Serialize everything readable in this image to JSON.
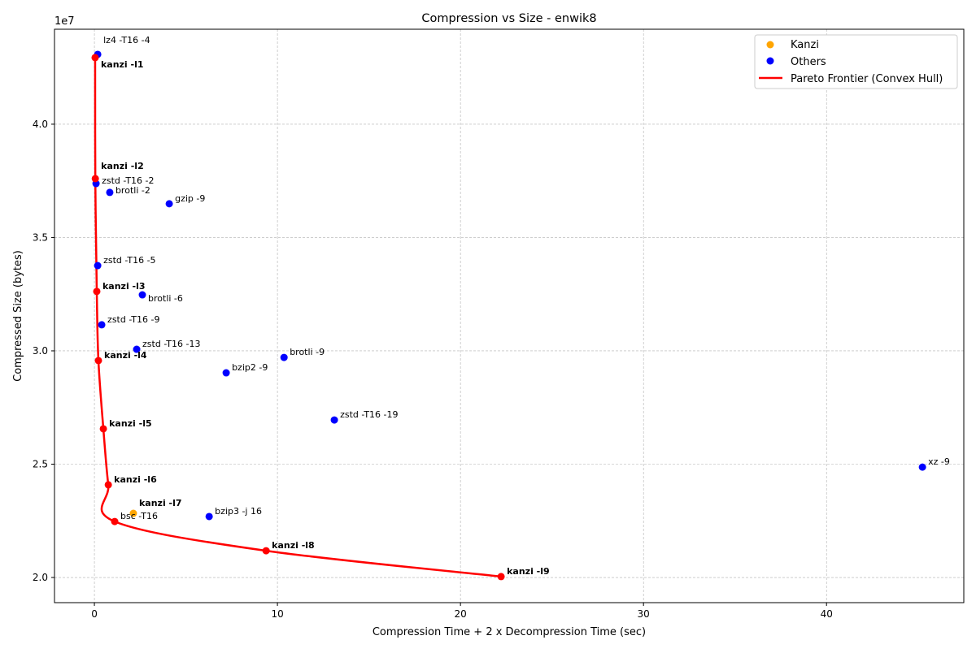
{
  "chart_data": {
    "type": "scatter",
    "title": "Compression vs Size - enwik8",
    "xlabel": "Compression Time + 2 x Decompression Time (sec)",
    "ylabel": "Compressed Size (bytes)",
    "y_scale_label": "1e7",
    "xlim": [
      -2.18,
      47.5
    ],
    "ylim": [
      1.889,
      4.419
    ],
    "x_ticks": [
      0,
      10,
      20,
      30,
      40
    ],
    "y_ticks": [
      2.0,
      2.5,
      3.0,
      3.5,
      4.0
    ],
    "y_tick_labels": [
      "2.0",
      "2.5",
      "3.0",
      "3.5",
      "4.0"
    ],
    "grid": true,
    "legend_position": "top-right",
    "colors": {
      "kanzi": "#FFA500",
      "others": "#0000FF",
      "pareto": "#FF0000"
    },
    "legend": [
      {
        "label": "Kanzi",
        "kind": "marker",
        "color": "#FFA500"
      },
      {
        "label": "Others",
        "kind": "marker",
        "color": "#0000FF"
      },
      {
        "label": "Pareto Frontier (Convex Hull)",
        "kind": "line",
        "color": "#FF0000"
      }
    ],
    "points": [
      {
        "label": "lz4 -T16 -4",
        "x": 0.18,
        "y": 4.308,
        "group": "others",
        "pareto": false
      },
      {
        "label": "kanzi -l1",
        "x": 0.04,
        "y": 4.294,
        "group": "kanzi",
        "pareto": true
      },
      {
        "label": "kanzi -l2",
        "x": 0.05,
        "y": 3.76,
        "group": "kanzi",
        "pareto": true
      },
      {
        "label": "zstd -T16 -2",
        "x": 0.09,
        "y": 3.738,
        "group": "others",
        "pareto": false
      },
      {
        "label": "brotli -2",
        "x": 0.84,
        "y": 3.699,
        "group": "others",
        "pareto": false
      },
      {
        "label": "gzip -9",
        "x": 4.09,
        "y": 3.649,
        "group": "others",
        "pareto": false
      },
      {
        "label": "zstd -T16 -5",
        "x": 0.18,
        "y": 3.376,
        "group": "others",
        "pareto": false
      },
      {
        "label": "kanzi -l3",
        "x": 0.13,
        "y": 3.262,
        "group": "kanzi",
        "pareto": true
      },
      {
        "label": "brotli -6",
        "x": 2.62,
        "y": 3.247,
        "group": "others",
        "pareto": false
      },
      {
        "label": "zstd -T16 -9",
        "x": 0.4,
        "y": 3.115,
        "group": "others",
        "pareto": false
      },
      {
        "label": "zstd -T16 -13",
        "x": 2.31,
        "y": 3.007,
        "group": "others",
        "pareto": false
      },
      {
        "label": "kanzi -l4",
        "x": 0.22,
        "y": 2.957,
        "group": "kanzi",
        "pareto": true
      },
      {
        "label": "brotli -9",
        "x": 10.36,
        "y": 2.971,
        "group": "others",
        "pareto": false
      },
      {
        "label": "bzip2 -9",
        "x": 7.2,
        "y": 2.903,
        "group": "others",
        "pareto": false
      },
      {
        "label": "zstd -T16 -19",
        "x": 13.11,
        "y": 2.695,
        "group": "others",
        "pareto": false
      },
      {
        "label": "kanzi -l5",
        "x": 0.49,
        "y": 2.656,
        "group": "kanzi",
        "pareto": true
      },
      {
        "label": "xz -9",
        "x": 45.24,
        "y": 2.487,
        "group": "others",
        "pareto": false
      },
      {
        "label": "kanzi -l6",
        "x": 0.76,
        "y": 2.409,
        "group": "kanzi",
        "pareto": true
      },
      {
        "label": "kanzi -l7",
        "x": 2.13,
        "y": 2.283,
        "group": "kanzi",
        "pareto": false
      },
      {
        "label": "bsc -T16",
        "x": 1.11,
        "y": 2.247,
        "group": "others",
        "pareto": true
      },
      {
        "label": "bzip3 -j 16",
        "x": 6.27,
        "y": 2.269,
        "group": "others",
        "pareto": false
      },
      {
        "label": "kanzi -l8",
        "x": 9.38,
        "y": 2.118,
        "group": "kanzi",
        "pareto": true
      },
      {
        "label": "kanzi -l9",
        "x": 22.22,
        "y": 2.004,
        "group": "kanzi",
        "pareto": true
      }
    ]
  }
}
